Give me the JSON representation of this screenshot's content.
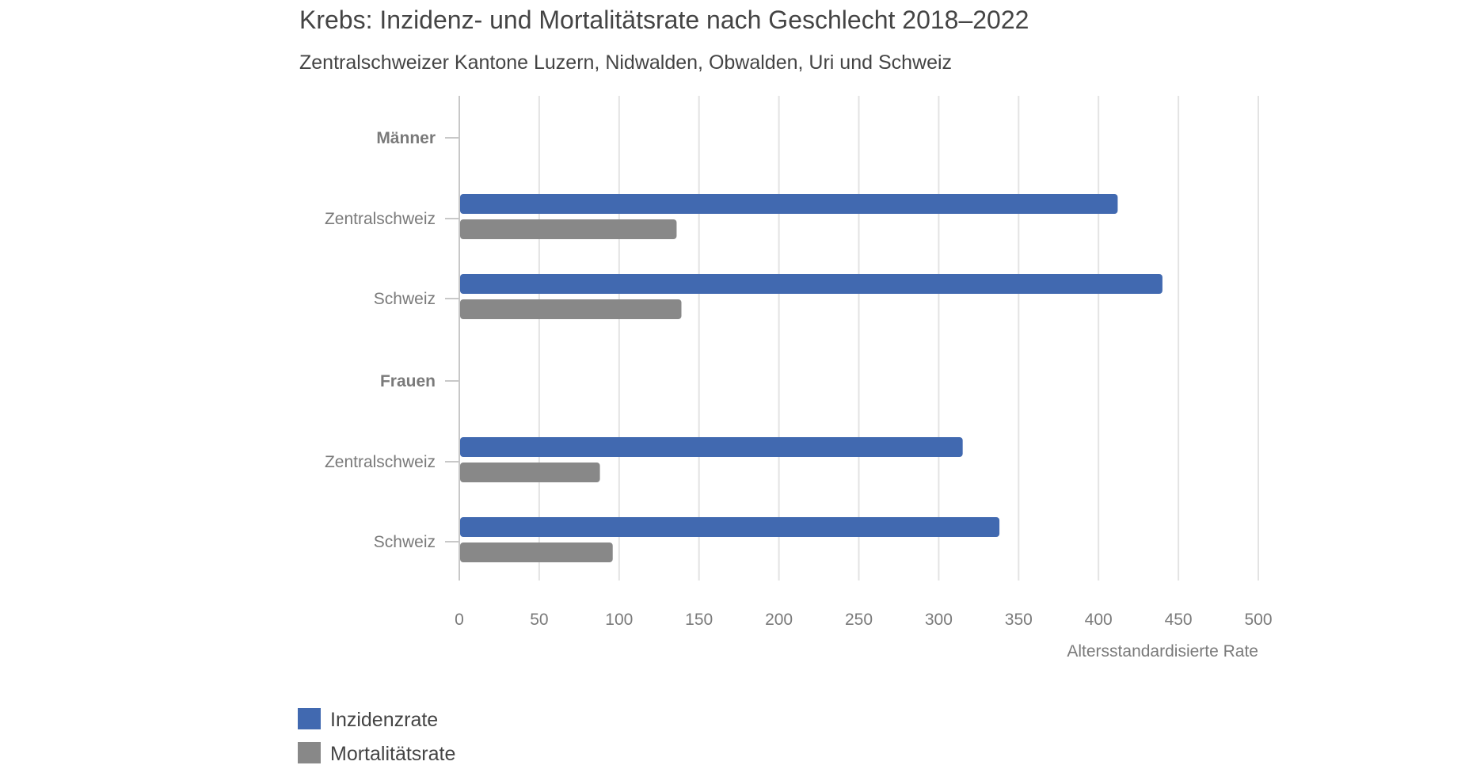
{
  "chart_data": {
    "type": "bar",
    "orientation": "horizontal",
    "title": "Krebs: Inzidenz- und Mortalitätsrate nach Geschlecht 2018–2022",
    "subtitle": "Zentralschweizer Kantone Luzern, Nidwalden, Obwalden, Uri und Schweiz",
    "xlabel": "Altersstandardisierte Rate",
    "ylabel": "",
    "xlim": [
      0,
      500
    ],
    "xticks": [
      "0",
      "50",
      "100",
      "150",
      "200",
      "250",
      "300",
      "350",
      "400",
      "450",
      "500"
    ],
    "grid": true,
    "legend_position": "bottom-left",
    "categories": [
      {
        "label": "Männer",
        "group_header": true
      },
      {
        "label": "Zentralschweiz",
        "group_header": false
      },
      {
        "label": "Schweiz",
        "group_header": false
      },
      {
        "label": "Frauen",
        "group_header": true
      },
      {
        "label": "Zentralschweiz",
        "group_header": false
      },
      {
        "label": "Schweiz",
        "group_header": false
      }
    ],
    "series": [
      {
        "name": "Inzidenzrate",
        "color": "#4169b0",
        "values": [
          null,
          412,
          440,
          null,
          315,
          338
        ]
      },
      {
        "name": "Mortalitätsrate",
        "color": "#888888",
        "values": [
          null,
          136,
          139,
          null,
          88,
          96
        ]
      }
    ]
  }
}
